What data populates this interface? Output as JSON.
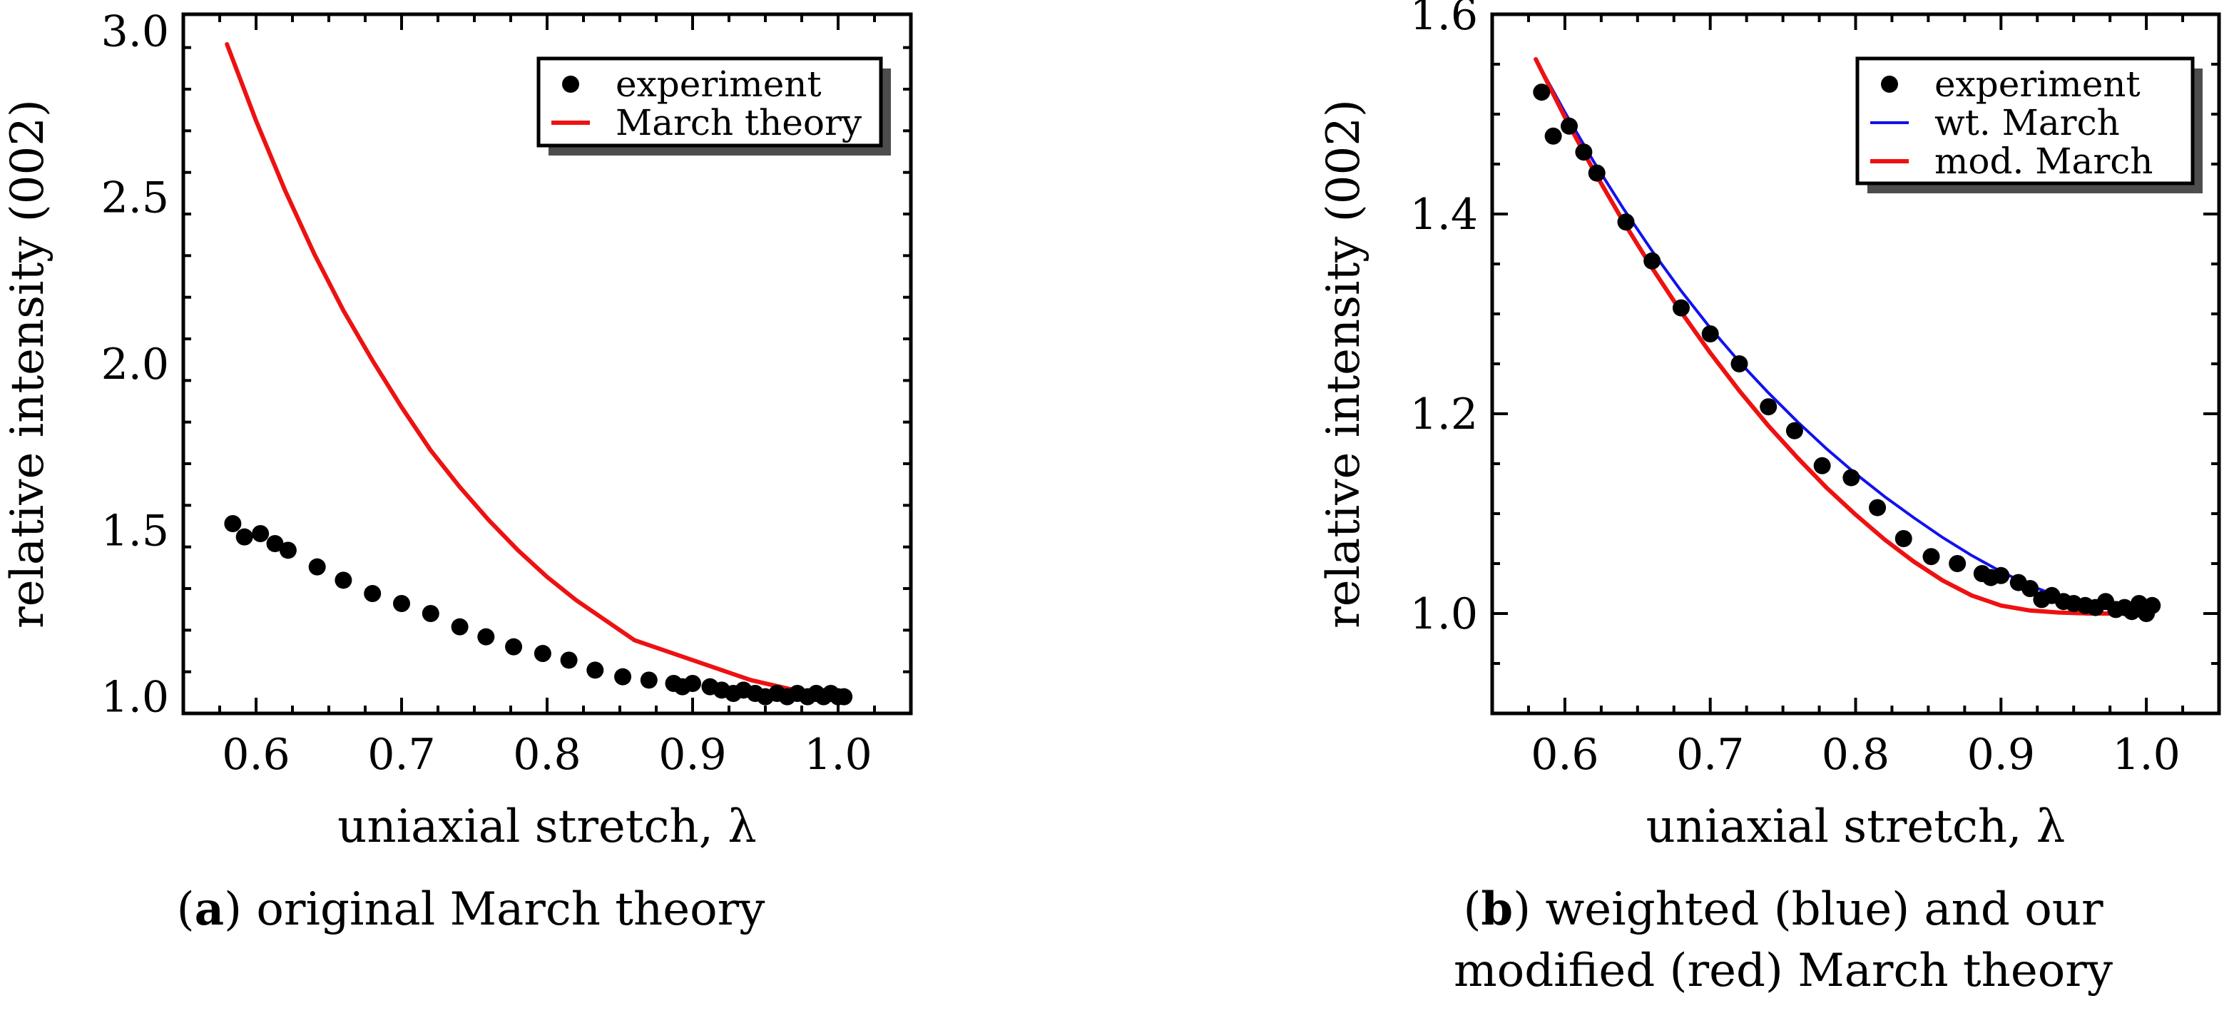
{
  "chart_data": [
    {
      "type": "scatter",
      "panel_id": "a",
      "caption_letter": "a",
      "caption_text": " original March theory",
      "xlabel": "uniaxial stretch, λ",
      "ylabel": "relative intensity (002)",
      "xlim": [
        0.55,
        1.05
      ],
      "ylim": [
        0.95,
        3.05
      ],
      "xticks": [
        0.6,
        0.7,
        0.8,
        0.9,
        1.0
      ],
      "xtick_labels": [
        "0.6",
        "0.7",
        "0.8",
        "0.9",
        "1.0"
      ],
      "yticks": [
        1.0,
        1.5,
        2.0,
        2.5,
        3.0
      ],
      "ytick_labels": [
        "1.0",
        "1.5",
        "2.0",
        "2.5",
        "3.0"
      ],
      "legend_position": "top-right",
      "series": [
        {
          "name": "experiment",
          "kind": "points",
          "color": "#000000",
          "x": [
            0.584,
            0.592,
            0.603,
            0.613,
            0.622,
            0.642,
            0.66,
            0.68,
            0.7,
            0.72,
            0.74,
            0.758,
            0.777,
            0.797,
            0.815,
            0.833,
            0.852,
            0.87,
            0.887,
            0.893,
            0.9,
            0.912,
            0.92,
            0.928,
            0.935,
            0.943,
            0.95,
            0.958,
            0.965,
            0.972,
            0.979,
            0.985,
            0.99,
            0.995,
            1.0,
            1.004
          ],
          "y": [
            1.52,
            1.48,
            1.49,
            1.46,
            1.44,
            1.39,
            1.35,
            1.31,
            1.28,
            1.25,
            1.21,
            1.18,
            1.15,
            1.13,
            1.11,
            1.08,
            1.06,
            1.05,
            1.04,
            1.03,
            1.04,
            1.03,
            1.02,
            1.01,
            1.02,
            1.01,
            1.0,
            1.01,
            1.0,
            1.01,
            1.0,
            1.01,
            1.0,
            1.01,
            1.0,
            1.0
          ]
        },
        {
          "name": "March theory",
          "kind": "line",
          "color": "#ee1111",
          "x": [
            0.58,
            0.6,
            0.62,
            0.64,
            0.66,
            0.68,
            0.7,
            0.72,
            0.74,
            0.76,
            0.78,
            0.8,
            0.82,
            0.84,
            0.86,
            0.88,
            0.9,
            0.92,
            0.94,
            0.96,
            0.98,
            1.0
          ],
          "y": [
            2.96,
            2.73,
            2.52,
            2.33,
            2.16,
            2.01,
            1.87,
            1.74,
            1.63,
            1.53,
            1.44,
            1.36,
            1.29,
            1.23,
            1.17,
            1.14,
            1.11,
            1.08,
            1.05,
            1.03,
            1.01,
            1.0
          ]
        }
      ]
    },
    {
      "type": "scatter",
      "panel_id": "b",
      "caption_letter": "b",
      "caption_text": " weighted (blue) and our",
      "caption_line2": "modified (red) March theory",
      "xlabel": "uniaxial stretch, λ",
      "ylabel": "relative intensity (002)",
      "xlim": [
        0.55,
        1.05
      ],
      "ylim": [
        0.9,
        1.6
      ],
      "xticks": [
        0.6,
        0.7,
        0.8,
        0.9,
        1.0
      ],
      "xtick_labels": [
        "0.6",
        "0.7",
        "0.8",
        "0.9",
        "1.0"
      ],
      "yticks": [
        1.0,
        1.2,
        1.4,
        1.6
      ],
      "ytick_labels": [
        "1.0",
        "1.2",
        "1.4",
        "1.6"
      ],
      "legend_position": "top-right",
      "series": [
        {
          "name": "experiment",
          "kind": "points",
          "color": "#000000",
          "x": [
            0.584,
            0.592,
            0.603,
            0.613,
            0.622,
            0.642,
            0.66,
            0.68,
            0.7,
            0.72,
            0.74,
            0.758,
            0.777,
            0.797,
            0.815,
            0.833,
            0.852,
            0.87,
            0.887,
            0.893,
            0.9,
            0.912,
            0.92,
            0.928,
            0.935,
            0.943,
            0.95,
            0.958,
            0.965,
            0.972,
            0.979,
            0.985,
            0.99,
            0.995,
            1.0,
            1.004
          ],
          "y": [
            1.522,
            1.478,
            1.488,
            1.462,
            1.441,
            1.392,
            1.353,
            1.306,
            1.28,
            1.25,
            1.207,
            1.183,
            1.148,
            1.136,
            1.106,
            1.075,
            1.057,
            1.05,
            1.04,
            1.036,
            1.038,
            1.031,
            1.025,
            1.014,
            1.018,
            1.012,
            1.01,
            1.008,
            1.006,
            1.012,
            1.004,
            1.006,
            1.002,
            1.01,
            1.0,
            1.008
          ]
        },
        {
          "name": "wt. March",
          "kind": "line",
          "color": "#1111ee",
          "x": [
            0.58,
            0.6,
            0.62,
            0.64,
            0.66,
            0.68,
            0.7,
            0.72,
            0.74,
            0.76,
            0.78,
            0.8,
            0.82,
            0.84,
            0.86,
            0.88,
            0.9,
            0.92,
            0.94,
            0.96,
            0.98,
            1.0
          ],
          "y": [
            1.555,
            1.502,
            1.452,
            1.406,
            1.363,
            1.323,
            1.286,
            1.252,
            1.221,
            1.192,
            1.165,
            1.14,
            1.117,
            1.096,
            1.076,
            1.058,
            1.042,
            1.028,
            1.017,
            1.009,
            1.003,
            1.0
          ]
        },
        {
          "name": "mod. March",
          "kind": "line",
          "color": "#ee1111",
          "x": [
            0.58,
            0.6,
            0.62,
            0.64,
            0.66,
            0.68,
            0.7,
            0.72,
            0.74,
            0.76,
            0.78,
            0.8,
            0.82,
            0.84,
            0.86,
            0.88,
            0.9,
            0.92,
            0.94,
            0.96,
            0.98,
            1.0
          ],
          "y": [
            1.555,
            1.497,
            1.443,
            1.393,
            1.346,
            1.302,
            1.261,
            1.223,
            1.188,
            1.156,
            1.126,
            1.099,
            1.074,
            1.052,
            1.033,
            1.018,
            1.008,
            1.003,
            1.001,
            1.0,
            1.0,
            1.0
          ]
        }
      ]
    }
  ]
}
